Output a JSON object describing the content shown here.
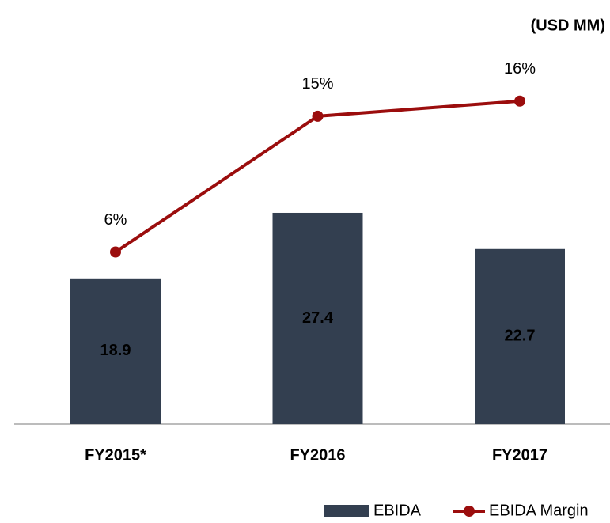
{
  "chart_data": {
    "type": "bar_line",
    "subtitle": "(USD MM)",
    "categories": [
      "FY2015*",
      "FY2016",
      "FY2017"
    ],
    "series": [
      {
        "name": "EBIDA",
        "type": "bar",
        "color": "#333f50",
        "values": [
          18.9,
          27.4,
          22.7
        ]
      },
      {
        "name": "EBIDA Margin",
        "type": "line",
        "axis": "y2",
        "color": "#9b0d0d",
        "values": [
          6,
          15,
          16
        ],
        "value_labels": [
          "6%",
          "15%",
          "16%"
        ]
      }
    ],
    "ylim": [
      0,
      55
    ],
    "y2lim": [
      -5.4,
      22.7
    ]
  }
}
